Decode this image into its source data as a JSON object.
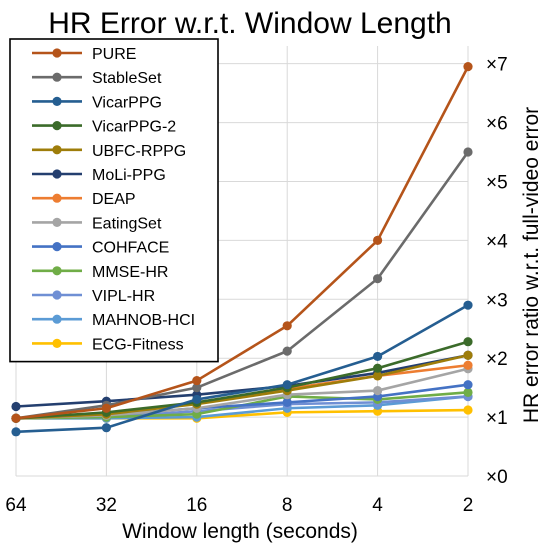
{
  "chart_data": {
    "type": "line",
    "title": "HR Error w.r.t. Window Length",
    "xlabel": "Window length (seconds)",
    "ylabel": "HR error ratio w.r.t. full-video error",
    "x_tick_labels": [
      "64",
      "32",
      "16",
      "8",
      "4",
      "2"
    ],
    "y_tick_labels": [
      "×0",
      "×1",
      "×2",
      "×3",
      "×4",
      "×5",
      "×6",
      "×7"
    ],
    "ylim": [
      0,
      7.3
    ],
    "grid": true,
    "legend_position": "top-left",
    "x": [
      64,
      32,
      16,
      8,
      4,
      2
    ],
    "series": [
      {
        "name": "PURE",
        "color": "#b5541a",
        "values": [
          0.98,
          1.15,
          1.62,
          2.55,
          4.0,
          6.95
        ]
      },
      {
        "name": "StableSet",
        "color": "#6b6b6b",
        "values": [
          0.98,
          1.2,
          1.5,
          2.12,
          3.35,
          5.5
        ]
      },
      {
        "name": "VicarPPG",
        "color": "#255e91",
        "values": [
          0.75,
          0.82,
          1.3,
          1.55,
          2.03,
          2.9
        ]
      },
      {
        "name": "VicarPPG-2",
        "color": "#3b6b2a",
        "values": [
          0.98,
          1.08,
          1.25,
          1.5,
          1.83,
          2.28
        ]
      },
      {
        "name": "UBFC-RPPG",
        "color": "#9e7d0a",
        "values": [
          0.98,
          1.05,
          1.22,
          1.45,
          1.7,
          2.05
        ]
      },
      {
        "name": "MoLi-PPG",
        "color": "#243f6f",
        "values": [
          1.18,
          1.27,
          1.38,
          1.53,
          1.75,
          2.05
        ]
      },
      {
        "name": "DEAP",
        "color": "#ed7d31",
        "values": [
          0.98,
          1.05,
          1.25,
          1.48,
          1.7,
          1.88
        ]
      },
      {
        "name": "EatingSet",
        "color": "#a5a5a5",
        "values": [
          0.98,
          1.03,
          1.15,
          1.38,
          1.45,
          1.82
        ]
      },
      {
        "name": "COHFACE",
        "color": "#4472c4",
        "values": [
          0.98,
          1.04,
          1.15,
          1.25,
          1.35,
          1.55
        ]
      },
      {
        "name": "MMSE-HR",
        "color": "#70ad47",
        "values": [
          0.98,
          1.0,
          1.05,
          1.35,
          1.3,
          1.42
        ]
      },
      {
        "name": "VIPL-HR",
        "color": "#6f8fd4",
        "values": [
          0.98,
          1.0,
          1.1,
          1.22,
          1.25,
          1.35
        ]
      },
      {
        "name": "MAHNOB-HCI",
        "color": "#5b9bd5",
        "values": [
          0.98,
          0.98,
          1.0,
          1.15,
          1.2,
          1.35
        ]
      },
      {
        "name": "ECG-Fitness",
        "color": "#ffc000",
        "values": [
          0.98,
          0.98,
          0.98,
          1.08,
          1.1,
          1.12
        ]
      }
    ]
  }
}
